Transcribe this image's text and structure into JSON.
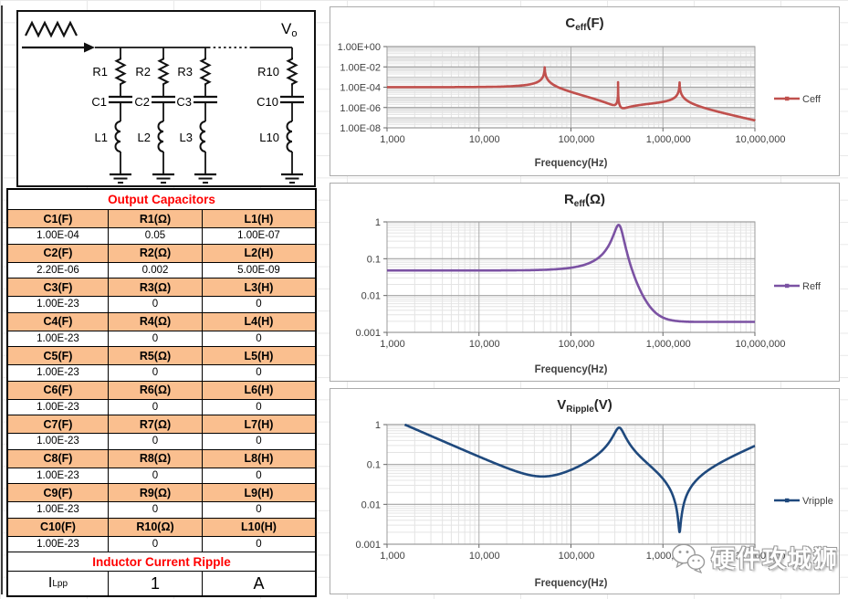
{
  "app": {
    "kind": "excel-worksheet",
    "subject": "Output capacitor ripple calculator"
  },
  "circuit": {
    "output_label": {
      "main": "V",
      "sub": "o"
    },
    "source_icon": "triangle-wave-current-source",
    "ground_icon": "ground-symbol",
    "branches": [
      {
        "r": "R1",
        "c": "C1",
        "l": "L1"
      },
      {
        "r": "R2",
        "c": "C2",
        "l": "L2"
      },
      {
        "r": "R3",
        "c": "C3",
        "l": "L3"
      },
      {
        "r": "R10",
        "c": "C10",
        "l": "L10"
      }
    ]
  },
  "table": {
    "title": "Output Capacitors",
    "title_color": "#FF0000",
    "header_fill": "#FABF8F",
    "groups": [
      {
        "headers": [
          "C1(F)",
          "R1(Ω)",
          "L1(H)"
        ],
        "values": [
          "1.00E-04",
          "0.05",
          "1.00E-07"
        ]
      },
      {
        "headers": [
          "C2(F)",
          "R2(Ω)",
          "L2(H)"
        ],
        "values": [
          "2.20E-06",
          "0.002",
          "5.00E-09"
        ]
      },
      {
        "headers": [
          "C3(F)",
          "R3(Ω)",
          "L3(H)"
        ],
        "values": [
          "1.00E-23",
          "0",
          "0"
        ]
      },
      {
        "headers": [
          "C4(F)",
          "R4(Ω)",
          "L4(H)"
        ],
        "values": [
          "1.00E-23",
          "0",
          "0"
        ]
      },
      {
        "headers": [
          "C5(F)",
          "R5(Ω)",
          "L5(H)"
        ],
        "values": [
          "1.00E-23",
          "0",
          "0"
        ]
      },
      {
        "headers": [
          "C6(F)",
          "R6(Ω)",
          "L6(H)"
        ],
        "values": [
          "1.00E-23",
          "0",
          "0"
        ]
      },
      {
        "headers": [
          "C7(F)",
          "R7(Ω)",
          "L7(H)"
        ],
        "values": [
          "1.00E-23",
          "0",
          "0"
        ]
      },
      {
        "headers": [
          "C8(F)",
          "R8(Ω)",
          "L8(H)"
        ],
        "values": [
          "1.00E-23",
          "0",
          "0"
        ]
      },
      {
        "headers": [
          "C9(F)",
          "R9(Ω)",
          "L9(H)"
        ],
        "values": [
          "1.00E-23",
          "0",
          "0"
        ]
      },
      {
        "headers": [
          "C10(F)",
          "R10(Ω)",
          "L10(H)"
        ],
        "values": [
          "1.00E-23",
          "0",
          "0"
        ]
      }
    ],
    "ripple": {
      "title": "Inductor Current Ripple",
      "label_main": "I",
      "label_sub": "Lpp",
      "value": "1",
      "unit": "A"
    }
  },
  "charts": [
    {
      "id": "ceff",
      "title": {
        "main": "C",
        "sub": "eff",
        "unit": "(F)"
      },
      "legend": "Ceff",
      "color": "#C0504D",
      "quantity": "ceff",
      "x_axis": {
        "label": "Frequency(Hz)",
        "scale": "log",
        "min": 1000,
        "max": 10000000,
        "ticks": [
          "1,000",
          "10,000",
          "100,000",
          "1,000,000",
          "10,000,000"
        ]
      },
      "y_axis": {
        "scale": "log",
        "min": 1e-08,
        "max": 1,
        "ticks": [
          "1.00E+00",
          "1.00E-02",
          "1.00E-04",
          "1.00E-06",
          "1.00E-08"
        ]
      }
    },
    {
      "id": "reff",
      "title": {
        "main": "R",
        "sub": "eff",
        "unit": "(Ω)"
      },
      "legend": "Reff",
      "color": "#7B52A3",
      "quantity": "reff",
      "x_axis": {
        "label": "Frequency(Hz)",
        "scale": "log",
        "min": 1000,
        "max": 10000000,
        "ticks": [
          "1,000",
          "10,000",
          "100,000",
          "1,000,000",
          "10,000,000"
        ]
      },
      "y_axis": {
        "scale": "log",
        "min": 0.001,
        "max": 1,
        "ticks": [
          "1",
          "0.1",
          "0.01",
          "0.001"
        ]
      }
    },
    {
      "id": "vripple",
      "title": {
        "main": "V",
        "sub": "Ripple",
        "unit": "(V)"
      },
      "legend": "Vripple",
      "color": "#1F497D",
      "quantity": "vripple",
      "x_axis": {
        "label": "Frequency(Hz)",
        "scale": "log",
        "min": 1000,
        "max": 10000000,
        "ticks": [
          "1,000",
          "10,000",
          "100,000",
          "1,000,000",
          "10,000,000"
        ]
      },
      "y_axis": {
        "scale": "log",
        "min": 0.001,
        "max": 1,
        "ticks": [
          "1",
          "0.1",
          "0.01",
          "0.001"
        ]
      }
    }
  ],
  "chart_data": [
    {
      "type": "line",
      "title": "Ceff(F)",
      "xlabel": "Frequency(Hz)",
      "x_scale": "log",
      "y_scale": "log",
      "xlim": [
        1000,
        10000000
      ],
      "ylim": [
        1e-08,
        1
      ],
      "legend": [
        "Ceff"
      ],
      "legend_position": "right",
      "grid": true,
      "series": [
        {
          "name": "Ceff",
          "color": "#C0504D",
          "points": [
            [
              1000,
              0.000102
            ],
            [
              10000,
              0.000106
            ],
            [
              30000,
              0.000153
            ],
            [
              50000,
              0.0018
            ],
            [
              51700,
              0.008
            ],
            [
              70000,
              0.00012
            ],
            [
              100000,
              3.5e-05
            ],
            [
              200000,
              5.2e-06
            ],
            [
              300000,
              1.8e-06
            ],
            [
              326000,
              0.0001
            ],
            [
              400000,
              9.6e-07
            ],
            [
              600000,
              1.9e-06
            ],
            [
              1000000,
              3.6e-06
            ],
            [
              1500000,
              9.6e-05
            ],
            [
              2000000,
              3e-06
            ],
            [
              5000000,
              2.3e-07
            ],
            [
              10000000,
              5.4e-08
            ]
          ]
        }
      ],
      "annotations": [
        "peak at branch-1 series resonance ~50 kHz",
        "narrow spike at anti-resonance ~330 kHz",
        "peak at branch-2 resonance ~1.5 MHz"
      ]
    },
    {
      "type": "line",
      "title": "Reff(Ω)",
      "xlabel": "Frequency(Hz)",
      "x_scale": "log",
      "y_scale": "log",
      "xlim": [
        1000,
        10000000
      ],
      "ylim": [
        0.001,
        1
      ],
      "legend": [
        "Reff"
      ],
      "legend_position": "right",
      "grid": true,
      "series": [
        {
          "name": "Reff",
          "color": "#7B52A3",
          "points": [
            [
              1000,
              0.048
            ],
            [
              10000,
              0.048
            ],
            [
              50000,
              0.05
            ],
            [
              100000,
              0.057
            ],
            [
              200000,
              0.107
            ],
            [
              300000,
              0.545
            ],
            [
              326000,
              0.81
            ],
            [
              400000,
              0.173
            ],
            [
              600000,
              0.0104
            ],
            [
              1000000,
              0.0025
            ],
            [
              2000000,
              0.0019
            ],
            [
              10000000,
              0.0019
            ]
          ]
        }
      ],
      "annotations": [
        "flat 0.05 Ω plateau, resonant peak ~0.85 Ω near 330 kHz, settles to 0.002 Ω"
      ]
    },
    {
      "type": "line",
      "title": "VRipple(V)",
      "xlabel": "Frequency(Hz)",
      "x_scale": "log",
      "y_scale": "log",
      "xlim": [
        1000,
        10000000
      ],
      "ylim": [
        0.001,
        1
      ],
      "legend": [
        "Vripple"
      ],
      "legend_position": "right",
      "grid": true,
      "series": [
        {
          "name": "Vripple",
          "color": "#1F497D",
          "points": [
            [
              1560,
              1.0
            ],
            [
              10000,
              0.158
            ],
            [
              30000,
              0.06
            ],
            [
              50000,
              0.05
            ],
            [
              100000,
              0.073
            ],
            [
              200000,
              0.187
            ],
            [
              326000,
              0.81
            ],
            [
              400000,
              0.449
            ],
            [
              600000,
              0.138
            ],
            [
              1000000,
              0.044
            ],
            [
              1517000,
              0.0023
            ],
            [
              2000000,
              0.026
            ],
            [
              5000000,
              0.136
            ],
            [
              10000000,
              0.293
            ]
          ]
        }
      ],
      "annotations": [
        "minimum ~0.05 V near 50 kHz",
        "peak ~0.85 V near 330 kHz",
        "sharp notch ~0.0024 V near 1.5 MHz"
      ]
    }
  ],
  "watermark": {
    "icon": "wechat-icon",
    "text": "硬件攻城狮"
  }
}
